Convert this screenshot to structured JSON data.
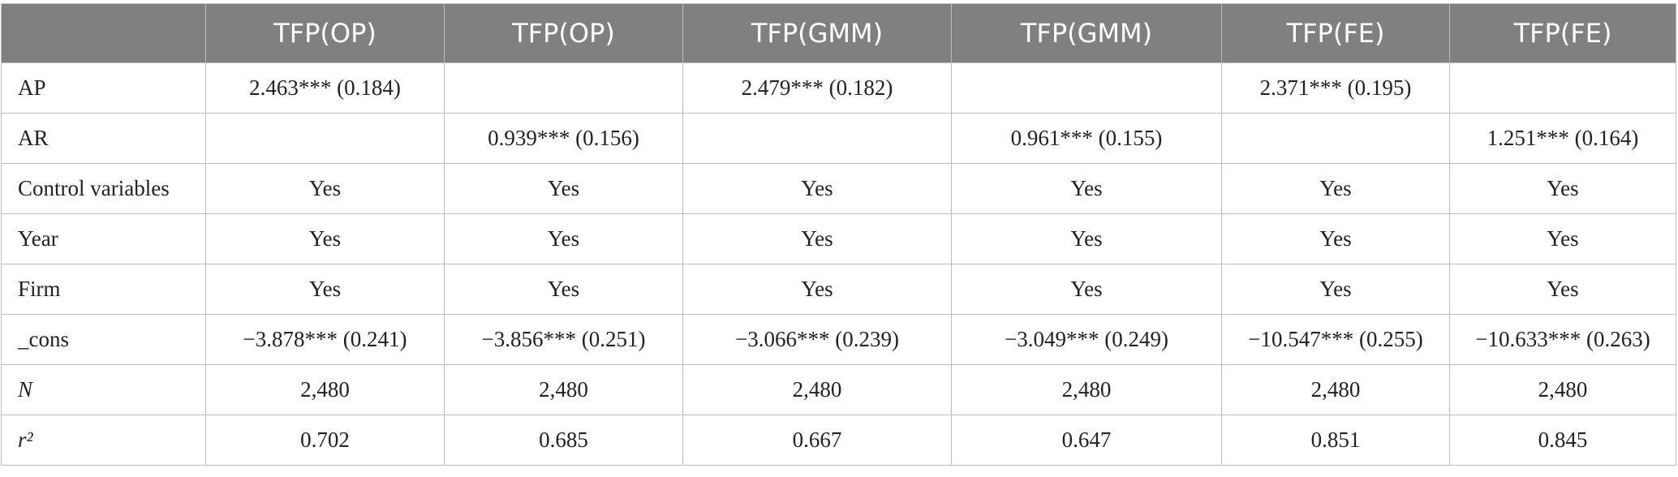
{
  "table": {
    "header": [
      "TFP(OP)",
      "TFP(OP)",
      "TFP(GMM)",
      "TFP(GMM)",
      "TFP(FE)",
      "TFP(FE)"
    ],
    "rows": [
      [
        "AP",
        "2.463*** (0.184)",
        null,
        "2.479*** (0.182)",
        null,
        "2.371*** (0.195)",
        null
      ],
      [
        "AR",
        null,
        "0.939*** (0.156)",
        null,
        "0.961*** (0.155)",
        null,
        "1.251*** (0.164)"
      ],
      [
        "Control variables",
        "Yes",
        "Yes",
        "Yes",
        "Yes",
        "Yes",
        "Yes"
      ],
      [
        "Year",
        "Yes",
        "Yes",
        "Yes",
        "Yes",
        "Yes",
        "Yes"
      ],
      [
        "Firm",
        "Yes",
        "Yes",
        "Yes",
        "Yes",
        "Yes",
        "Yes"
      ],
      [
        "_cons",
        "−3.878*** (0.241)",
        "−3.856*** (0.251)",
        "−3.066*** (0.239)",
        "−3.049*** (0.249)",
        "−10.547*** (0.255)",
        "−10.633*** (0.263)"
      ],
      [
        "N",
        "2,480",
        "2,480",
        "2,480",
        "2,480",
        "2,480",
        "2,480"
      ],
      [
        "r²",
        "0.702",
        "0.685",
        "0.667",
        "0.647",
        "0.851",
        "0.845"
      ]
    ]
  }
}
